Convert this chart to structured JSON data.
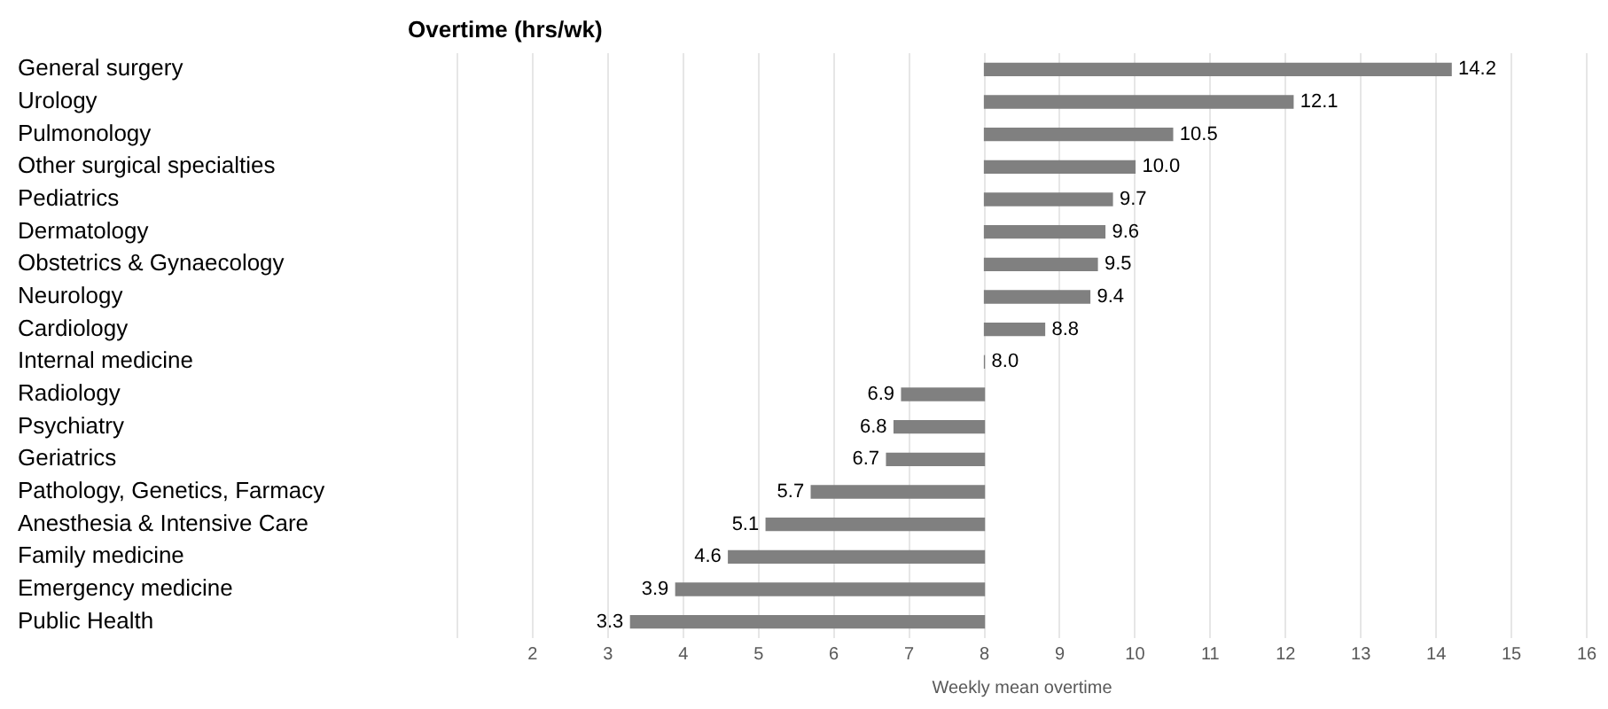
{
  "chart_data": {
    "type": "bar",
    "orientation": "horizontal",
    "title": "Overtime (hrs/wk)",
    "xlabel": "Weekly mean overtime",
    "categories": [
      "General surgery",
      "Urology",
      "Pulmonology",
      "Other surgical specialties",
      "Pediatrics",
      "Dermatology",
      "Obstetrics & Gynaecology",
      "Neurology",
      "Cardiology",
      "Internal medicine",
      "Radiology",
      "Psychiatry",
      "Geriatrics",
      "Pathology, Genetics, Farmacy",
      "Anesthesia & Intensive Care",
      "Family medicine",
      "Emergency medicine",
      "Public Health"
    ],
    "base": [
      8,
      8,
      8,
      8,
      8,
      8,
      8,
      8,
      8,
      8,
      8,
      8,
      8,
      8,
      8,
      8,
      8,
      8
    ],
    "values": [
      6.2,
      4.1,
      2.5,
      2.0,
      1.7,
      1.6,
      1.5,
      1.4,
      0.8,
      0.0,
      -1.1,
      -1.2,
      -1.3,
      -2.3,
      -2.9,
      -3.4,
      -4.1,
      -4.7
    ],
    "value_labels": [
      "14.2",
      "12.1",
      "10.5",
      "10.0",
      "9.7",
      "9.6",
      "9.5",
      "9.4",
      "8.8",
      "8.0",
      "6.9",
      "6.8",
      "6.7",
      "5.7",
      "5.1",
      "4.6",
      "3.9",
      "3.3"
    ],
    "color": "#808080",
    "xlim": [
      1,
      16
    ],
    "xticks": [
      {
        "value": 1,
        "label": null
      },
      2,
      3,
      4,
      5,
      6,
      7,
      8,
      9,
      10,
      11,
      12,
      13,
      14,
      15,
      16
    ],
    "grid": "x",
    "legend": false
  }
}
